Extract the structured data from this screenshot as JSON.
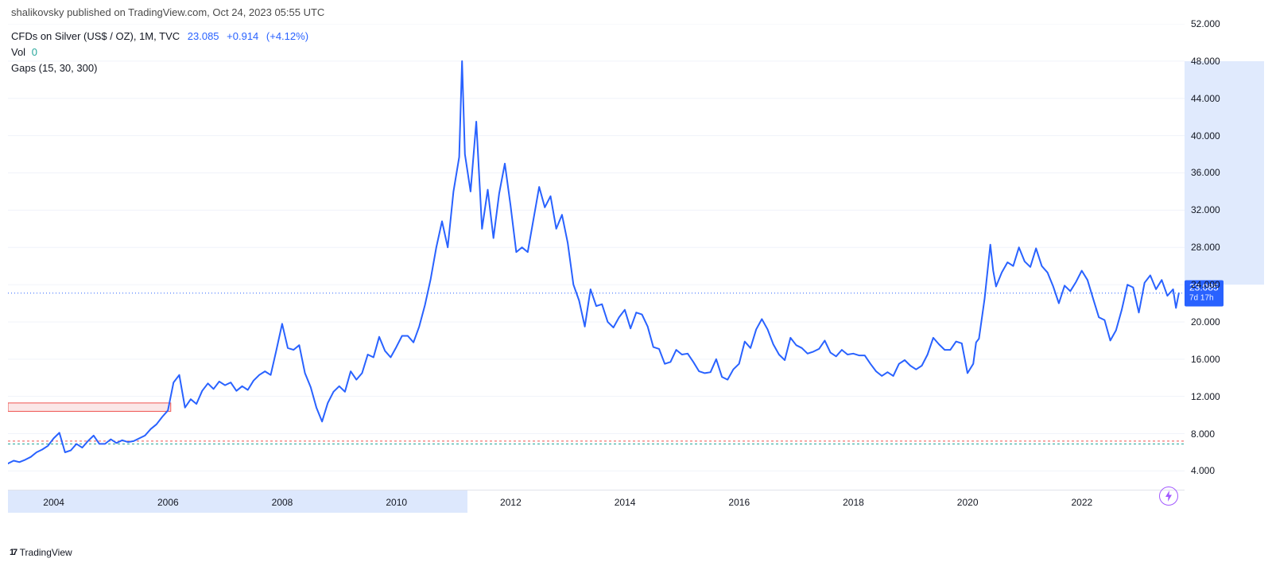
{
  "header": {
    "text": "shalikovsky published on TradingView.com, Oct 24, 2023 05:55 UTC"
  },
  "info": {
    "symbol": "CFDs on Silver (US$ / OZ), 1M, TVC",
    "price": "23.085",
    "change_abs": "+0.914",
    "change_pct": "(+4.12%)",
    "vol_label": "Vol",
    "vol_value": "0",
    "gaps": "Gaps (15, 30, 300)"
  },
  "price_badge": {
    "value": "23.085",
    "countdown": "7d 17h"
  },
  "footer": {
    "brand": "TradingView"
  },
  "chart": {
    "type": "line",
    "line_color": "#2962ff",
    "line_width": 2,
    "background_color": "#ffffff",
    "grid_color": "#f0f3fa",
    "dotted_line_color": "#2962ff",
    "gap_line_green": "#26a69a",
    "gap_line_red": "#ef5350",
    "gap_band_fill": "#f7c9c9",
    "gap_band_opacity": 0.45,
    "y_min": 2.5,
    "y_max": 52.0,
    "x_min": 2003.3,
    "x_max": 2023.9,
    "y_ticks": [
      4.0,
      8.0,
      12.0,
      16.0,
      20.0,
      24.0,
      28.0,
      32.0,
      36.0,
      40.0,
      44.0,
      48.0,
      52.0
    ],
    "y_highlight": [
      24.0,
      48.0
    ],
    "x_ticks": [
      2004,
      2006,
      2008,
      2010,
      2012,
      2014,
      2016,
      2018,
      2020,
      2022
    ],
    "x_highlight": [
      2003.3,
      2011.35
    ],
    "gap_band": {
      "low": 10.4,
      "high": 11.3,
      "x_end": 2006.15
    },
    "green_dash_y": 6.9,
    "red_dash_y": 7.2,
    "series": [
      [
        2003.3,
        4.8
      ],
      [
        2003.4,
        5.1
      ],
      [
        2003.5,
        4.95
      ],
      [
        2003.6,
        5.2
      ],
      [
        2003.7,
        5.5
      ],
      [
        2003.8,
        6.0
      ],
      [
        2003.9,
        6.3
      ],
      [
        2004.0,
        6.7
      ],
      [
        2004.1,
        7.5
      ],
      [
        2004.2,
        8.1
      ],
      [
        2004.3,
        6.0
      ],
      [
        2004.4,
        6.2
      ],
      [
        2004.5,
        6.9
      ],
      [
        2004.6,
        6.5
      ],
      [
        2004.7,
        7.2
      ],
      [
        2004.8,
        7.8
      ],
      [
        2004.9,
        6.9
      ],
      [
        2005.0,
        6.9
      ],
      [
        2005.1,
        7.4
      ],
      [
        2005.2,
        7.0
      ],
      [
        2005.3,
        7.3
      ],
      [
        2005.4,
        7.1
      ],
      [
        2005.5,
        7.2
      ],
      [
        2005.6,
        7.5
      ],
      [
        2005.7,
        7.8
      ],
      [
        2005.8,
        8.5
      ],
      [
        2005.9,
        9.0
      ],
      [
        2006.0,
        9.8
      ],
      [
        2006.1,
        10.5
      ],
      [
        2006.2,
        13.5
      ],
      [
        2006.3,
        14.3
      ],
      [
        2006.4,
        10.8
      ],
      [
        2006.5,
        11.7
      ],
      [
        2006.6,
        11.2
      ],
      [
        2006.7,
        12.6
      ],
      [
        2006.8,
        13.4
      ],
      [
        2006.9,
        12.8
      ],
      [
        2007.0,
        13.6
      ],
      [
        2007.1,
        13.2
      ],
      [
        2007.2,
        13.5
      ],
      [
        2007.3,
        12.6
      ],
      [
        2007.4,
        13.1
      ],
      [
        2007.5,
        12.7
      ],
      [
        2007.6,
        13.7
      ],
      [
        2007.7,
        14.3
      ],
      [
        2007.8,
        14.7
      ],
      [
        2007.9,
        14.3
      ],
      [
        2008.0,
        17.0
      ],
      [
        2008.1,
        19.8
      ],
      [
        2008.2,
        17.2
      ],
      [
        2008.3,
        17.0
      ],
      [
        2008.4,
        17.5
      ],
      [
        2008.5,
        14.5
      ],
      [
        2008.6,
        13.0
      ],
      [
        2008.7,
        10.8
      ],
      [
        2008.8,
        9.3
      ],
      [
        2008.9,
        11.3
      ],
      [
        2009.0,
        12.5
      ],
      [
        2009.1,
        13.1
      ],
      [
        2009.2,
        12.5
      ],
      [
        2009.3,
        14.7
      ],
      [
        2009.4,
        13.8
      ],
      [
        2009.5,
        14.5
      ],
      [
        2009.6,
        16.5
      ],
      [
        2009.7,
        16.2
      ],
      [
        2009.8,
        18.4
      ],
      [
        2009.9,
        16.9
      ],
      [
        2010.0,
        16.2
      ],
      [
        2010.1,
        17.3
      ],
      [
        2010.2,
        18.5
      ],
      [
        2010.3,
        18.5
      ],
      [
        2010.4,
        17.8
      ],
      [
        2010.5,
        19.5
      ],
      [
        2010.6,
        21.8
      ],
      [
        2010.7,
        24.6
      ],
      [
        2010.8,
        28.0
      ],
      [
        2010.9,
        30.8
      ],
      [
        2011.0,
        28.0
      ],
      [
        2011.1,
        34.0
      ],
      [
        2011.2,
        37.7
      ],
      [
        2011.25,
        48.0
      ],
      [
        2011.3,
        38.0
      ],
      [
        2011.4,
        34.0
      ],
      [
        2011.5,
        41.5
      ],
      [
        2011.6,
        30.0
      ],
      [
        2011.7,
        34.2
      ],
      [
        2011.8,
        29.0
      ],
      [
        2011.9,
        33.8
      ],
      [
        2012.0,
        37.0
      ],
      [
        2012.1,
        32.5
      ],
      [
        2012.2,
        27.5
      ],
      [
        2012.3,
        28.0
      ],
      [
        2012.4,
        27.5
      ],
      [
        2012.5,
        31.0
      ],
      [
        2012.6,
        34.5
      ],
      [
        2012.7,
        32.3
      ],
      [
        2012.8,
        33.5
      ],
      [
        2012.9,
        30.0
      ],
      [
        2013.0,
        31.5
      ],
      [
        2013.1,
        28.5
      ],
      [
        2013.2,
        24.0
      ],
      [
        2013.3,
        22.3
      ],
      [
        2013.4,
        19.5
      ],
      [
        2013.5,
        23.5
      ],
      [
        2013.6,
        21.7
      ],
      [
        2013.7,
        21.9
      ],
      [
        2013.8,
        20.0
      ],
      [
        2013.9,
        19.4
      ],
      [
        2014.0,
        20.5
      ],
      [
        2014.1,
        21.3
      ],
      [
        2014.2,
        19.3
      ],
      [
        2014.3,
        21.0
      ],
      [
        2014.4,
        20.8
      ],
      [
        2014.5,
        19.5
      ],
      [
        2014.6,
        17.3
      ],
      [
        2014.7,
        17.1
      ],
      [
        2014.8,
        15.5
      ],
      [
        2014.9,
        15.7
      ],
      [
        2015.0,
        17.0
      ],
      [
        2015.1,
        16.5
      ],
      [
        2015.2,
        16.6
      ],
      [
        2015.3,
        15.7
      ],
      [
        2015.4,
        14.7
      ],
      [
        2015.5,
        14.5
      ],
      [
        2015.6,
        14.6
      ],
      [
        2015.7,
        16.0
      ],
      [
        2015.8,
        14.1
      ],
      [
        2015.9,
        13.8
      ],
      [
        2016.0,
        14.9
      ],
      [
        2016.1,
        15.5
      ],
      [
        2016.2,
        17.9
      ],
      [
        2016.3,
        17.2
      ],
      [
        2016.4,
        19.2
      ],
      [
        2016.5,
        20.3
      ],
      [
        2016.6,
        19.2
      ],
      [
        2016.7,
        17.6
      ],
      [
        2016.8,
        16.5
      ],
      [
        2016.9,
        15.9
      ],
      [
        2017.0,
        18.3
      ],
      [
        2017.1,
        17.5
      ],
      [
        2017.2,
        17.2
      ],
      [
        2017.3,
        16.6
      ],
      [
        2017.4,
        16.8
      ],
      [
        2017.5,
        17.1
      ],
      [
        2017.6,
        18.0
      ],
      [
        2017.7,
        16.7
      ],
      [
        2017.8,
        16.3
      ],
      [
        2017.9,
        17.0
      ],
      [
        2018.0,
        16.5
      ],
      [
        2018.1,
        16.6
      ],
      [
        2018.2,
        16.4
      ],
      [
        2018.3,
        16.4
      ],
      [
        2018.4,
        15.5
      ],
      [
        2018.5,
        14.7
      ],
      [
        2018.6,
        14.2
      ],
      [
        2018.7,
        14.6
      ],
      [
        2018.8,
        14.2
      ],
      [
        2018.9,
        15.5
      ],
      [
        2019.0,
        15.9
      ],
      [
        2019.1,
        15.3
      ],
      [
        2019.2,
        14.9
      ],
      [
        2019.3,
        15.3
      ],
      [
        2019.4,
        16.5
      ],
      [
        2019.5,
        18.3
      ],
      [
        2019.6,
        17.6
      ],
      [
        2019.7,
        17.0
      ],
      [
        2019.8,
        17.0
      ],
      [
        2019.9,
        17.9
      ],
      [
        2020.0,
        17.7
      ],
      [
        2020.1,
        14.5
      ],
      [
        2020.2,
        15.5
      ],
      [
        2020.25,
        17.8
      ],
      [
        2020.3,
        18.2
      ],
      [
        2020.4,
        22.5
      ],
      [
        2020.5,
        28.3
      ],
      [
        2020.55,
        25.5
      ],
      [
        2020.6,
        23.8
      ],
      [
        2020.7,
        25.3
      ],
      [
        2020.8,
        26.4
      ],
      [
        2020.9,
        26.0
      ],
      [
        2021.0,
        28.0
      ],
      [
        2021.1,
        26.5
      ],
      [
        2021.2,
        25.9
      ],
      [
        2021.3,
        27.9
      ],
      [
        2021.4,
        26.0
      ],
      [
        2021.5,
        25.3
      ],
      [
        2021.6,
        23.8
      ],
      [
        2021.7,
        22.0
      ],
      [
        2021.8,
        23.9
      ],
      [
        2021.9,
        23.3
      ],
      [
        2022.0,
        24.3
      ],
      [
        2022.1,
        25.5
      ],
      [
        2022.2,
        24.5
      ],
      [
        2022.3,
        22.5
      ],
      [
        2022.4,
        20.5
      ],
      [
        2022.5,
        20.2
      ],
      [
        2022.6,
        18.0
      ],
      [
        2022.7,
        19.1
      ],
      [
        2022.8,
        21.3
      ],
      [
        2022.9,
        24.0
      ],
      [
        2023.0,
        23.7
      ],
      [
        2023.1,
        21.0
      ],
      [
        2023.2,
        24.2
      ],
      [
        2023.3,
        25.0
      ],
      [
        2023.4,
        23.5
      ],
      [
        2023.5,
        24.5
      ],
      [
        2023.6,
        22.8
      ],
      [
        2023.7,
        23.5
      ],
      [
        2023.75,
        21.5
      ],
      [
        2023.8,
        23.085
      ]
    ]
  }
}
